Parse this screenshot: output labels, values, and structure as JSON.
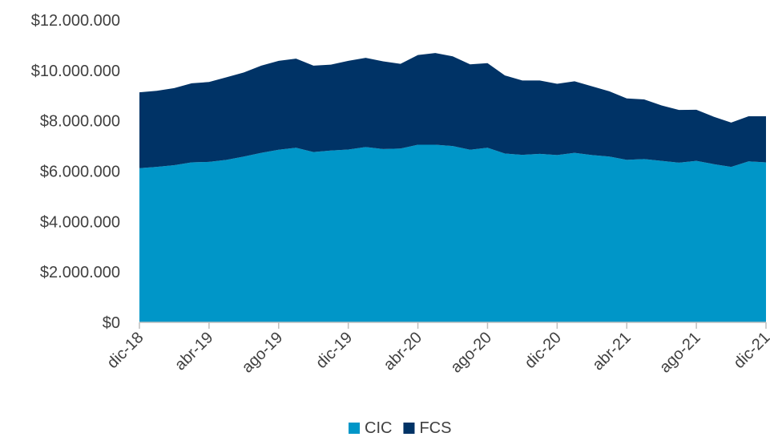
{
  "chart_data": {
    "type": "area",
    "stacked": true,
    "x": [
      "dic-18",
      "ene-19",
      "feb-19",
      "mar-19",
      "abr-19",
      "may-19",
      "jun-19",
      "jul-19",
      "ago-19",
      "sep-19",
      "oct-19",
      "nov-19",
      "dic-19",
      "ene-20",
      "feb-20",
      "mar-20",
      "abr-20",
      "may-20",
      "jun-20",
      "jul-20",
      "ago-20",
      "sep-20",
      "oct-20",
      "nov-20",
      "dic-20",
      "ene-21",
      "feb-21",
      "mar-21",
      "abr-21",
      "may-21",
      "jun-21",
      "jul-21",
      "ago-21",
      "sep-21",
      "oct-21",
      "nov-21",
      "dic-21"
    ],
    "x_tick_labels": [
      "dic-18",
      "abr-19",
      "ago-19",
      "dic-19",
      "abr-20",
      "ago-20",
      "dic-20",
      "abr-21",
      "ago-21",
      "dic-21"
    ],
    "series": [
      {
        "name": "CIC",
        "color": "#0096C8",
        "values": [
          6120000,
          6170000,
          6240000,
          6350000,
          6370000,
          6450000,
          6580000,
          6730000,
          6850000,
          6930000,
          6760000,
          6820000,
          6860000,
          6960000,
          6880000,
          6900000,
          7050000,
          7050000,
          7000000,
          6850000,
          6930000,
          6700000,
          6650000,
          6690000,
          6640000,
          6730000,
          6640000,
          6580000,
          6450000,
          6480000,
          6410000,
          6340000,
          6410000,
          6280000,
          6170000,
          6390000,
          6350000
        ]
      },
      {
        "name": "FCS",
        "color": "#003366",
        "values": [
          3010000,
          3020000,
          3060000,
          3140000,
          3170000,
          3280000,
          3340000,
          3460000,
          3530000,
          3540000,
          3430000,
          3410000,
          3520000,
          3540000,
          3480000,
          3360000,
          3560000,
          3640000,
          3560000,
          3390000,
          3360000,
          3100000,
          2950000,
          2910000,
          2830000,
          2840000,
          2730000,
          2590000,
          2440000,
          2370000,
          2200000,
          2090000,
          2030000,
          1880000,
          1760000,
          1790000,
          1830000
        ]
      }
    ],
    "y_tick_labels": [
      "$0",
      "$2.000.000",
      "$4.000.000",
      "$6.000.000",
      "$8.000.000",
      "$10.000.000",
      "$12.000.000"
    ],
    "ylim": [
      0,
      12000000
    ],
    "legend_position": "bottom",
    "grid": false
  }
}
